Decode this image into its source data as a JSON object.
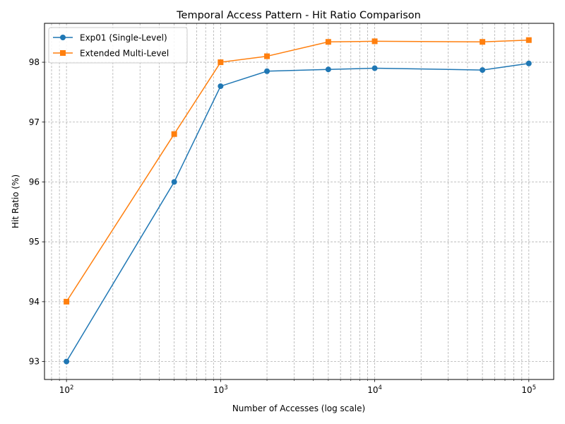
{
  "chart_data": {
    "type": "line",
    "title": "Temporal Access Pattern - Hit Ratio Comparison",
    "xlabel": "Number of Accesses (log scale)",
    "ylabel": "Hit Ratio (%)",
    "x_scale": "log",
    "xlim": [
      72,
      145000
    ],
    "ylim": [
      92.7,
      98.65
    ],
    "x_ticks": [
      100,
      1000,
      10000,
      100000
    ],
    "x_tick_labels": [
      {
        "base": "10",
        "exp": "2"
      },
      {
        "base": "10",
        "exp": "3"
      },
      {
        "base": "10",
        "exp": "4"
      },
      {
        "base": "10",
        "exp": "5"
      }
    ],
    "y_ticks": [
      93,
      94,
      95,
      96,
      97,
      98
    ],
    "grid": true,
    "legend_position": "top-left",
    "x": [
      100,
      500,
      1000,
      2000,
      5000,
      10000,
      50000,
      100000
    ],
    "series": [
      {
        "name": "Exp01 (Single-Level)",
        "color": "#1f77b4",
        "marker": "circle",
        "values": [
          93.0,
          96.0,
          97.6,
          97.85,
          97.88,
          97.9,
          97.87,
          97.98
        ]
      },
      {
        "name": "Extended Multi-Level",
        "color": "#ff7f0e",
        "marker": "square",
        "values": [
          94.0,
          96.8,
          98.0,
          98.1,
          98.34,
          98.35,
          98.34,
          98.37
        ]
      }
    ]
  }
}
